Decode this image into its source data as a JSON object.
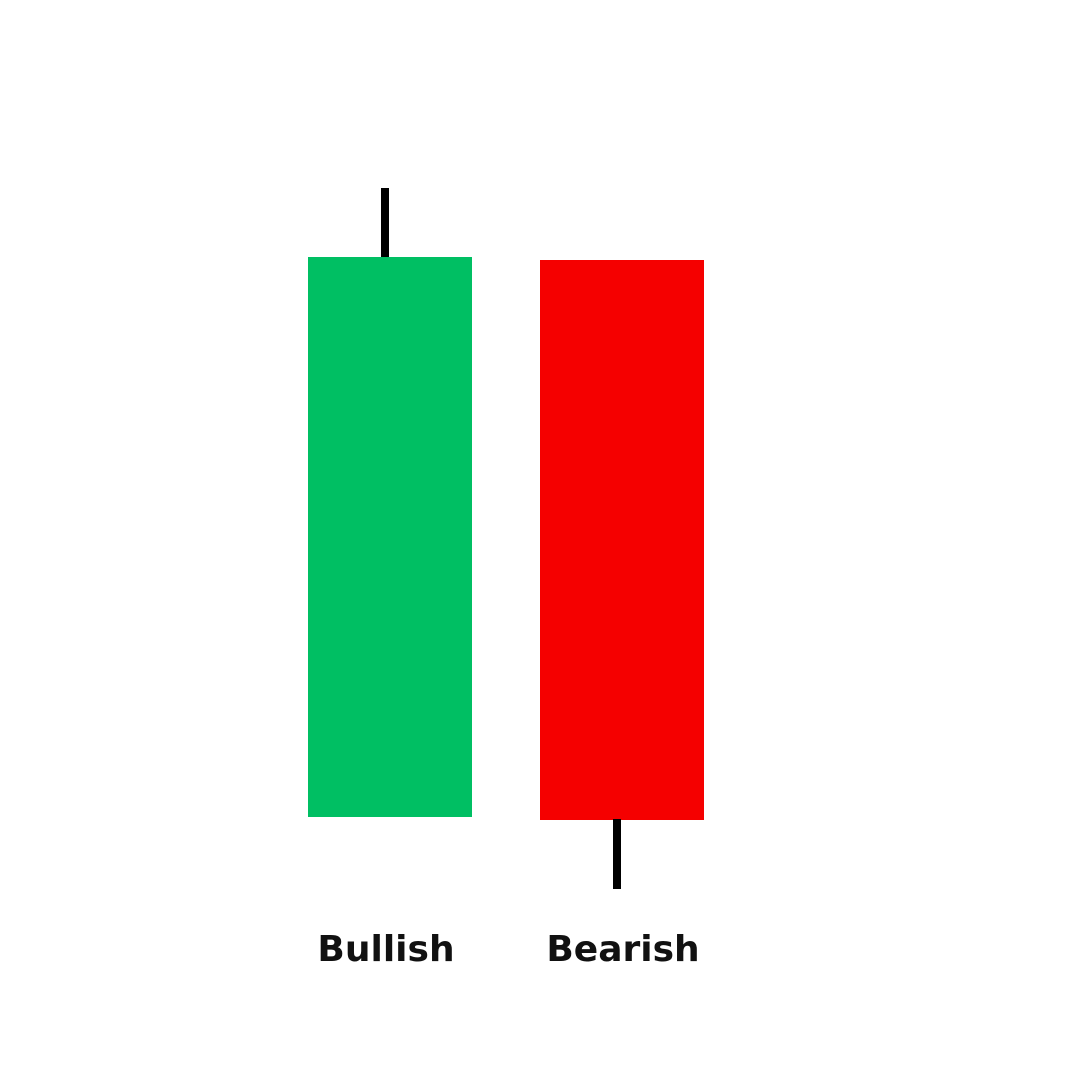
{
  "candles": {
    "bullish": {
      "label": "Bullish",
      "body_color": "#00BF63",
      "wick_color": "#000000"
    },
    "bearish": {
      "label": "Bearish",
      "body_color": "#F50000",
      "wick_color": "#000000"
    }
  }
}
